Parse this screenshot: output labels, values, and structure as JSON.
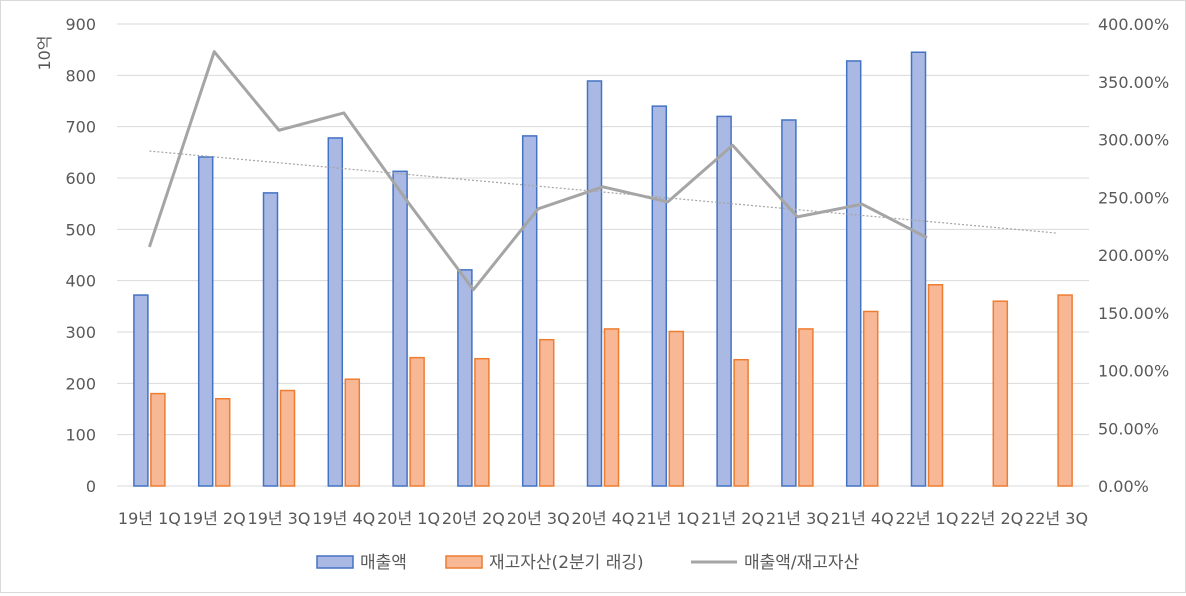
{
  "chart_data": {
    "type": "bar",
    "unit_label": "10억",
    "categories": [
      "19년 1Q",
      "19년 2Q",
      "19년 3Q",
      "19년 4Q",
      "20년 1Q",
      "20년 2Q",
      "20년 3Q",
      "20년 4Q",
      "21년 1Q",
      "21년 2Q",
      "21년 3Q",
      "21년 4Q",
      "22년 1Q",
      "22년 2Q",
      "22년 3Q"
    ],
    "category_labels": [
      "19년 1Q",
      "19년 2Q",
      "19년 3Q",
      "19년 4Q",
      "20년 1Q",
      "20년 2Q",
      "20년 3Q",
      "20년 4Q",
      "21년 1Q",
      "21년 2Q",
      "21년 3Q",
      "21년 4Q",
      "22년 1Q",
      "22년 2Q",
      "22년 3Q"
    ],
    "y_left": {
      "min": 0,
      "max": 900,
      "ticks": [
        0,
        100,
        200,
        300,
        400,
        500,
        600,
        700,
        800,
        900
      ],
      "tick_labels": [
        "0",
        "100",
        "200",
        "300",
        "400",
        "500",
        "600",
        "700",
        "800",
        "900"
      ]
    },
    "y_right": {
      "min": 0,
      "max": 400,
      "ticks": [
        0,
        50,
        100,
        150,
        200,
        250,
        300,
        350,
        400
      ],
      "tick_labels": [
        "0.00%",
        "50.00%",
        "100.00%",
        "150.00%",
        "200.00%",
        "250.00%",
        "300.00%",
        "350.00%",
        "400.00%"
      ]
    },
    "grid": true,
    "legend_position": "bottom",
    "series": [
      {
        "name": "매출액",
        "type": "bar",
        "axis": "left",
        "color": "#4472c4",
        "fill": "#a9b9e3",
        "values": [
          372,
          641,
          571,
          678,
          613,
          421,
          682,
          789,
          740,
          720,
          713,
          828,
          845,
          null,
          null
        ]
      },
      {
        "name": "재고자산(2분기 래깅)",
        "type": "bar",
        "axis": "left",
        "color": "#ed7d31",
        "fill": "#f8b896",
        "values": [
          180,
          170,
          186,
          208,
          250,
          248,
          285,
          306,
          301,
          246,
          306,
          340,
          392,
          360,
          372
        ]
      },
      {
        "name": "매출액/재고자산",
        "type": "line",
        "axis": "right",
        "color": "#a5a5a5",
        "values": [
          207,
          376,
          308,
          323,
          245,
          170,
          240,
          259,
          246,
          295,
          233,
          244,
          215,
          null,
          null
        ]
      }
    ],
    "trendline": {
      "of_series": "매출액/재고자산",
      "color": "#a5a5a5",
      "style": "dotted",
      "start": 290,
      "end": 219
    }
  }
}
